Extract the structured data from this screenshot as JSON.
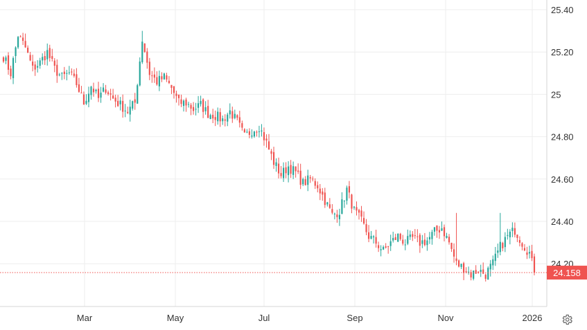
{
  "chart_data": {
    "type": "candlestick",
    "title": "",
    "xlabel": "",
    "ylabel": "",
    "ylim": [
      24.07,
      25.42
    ],
    "y_ticks": [
      "25.40",
      "25.20",
      "25",
      "24.80",
      "24.60",
      "24.40",
      "24.20"
    ],
    "y_tick_values": [
      25.4,
      25.2,
      25.0,
      24.8,
      24.6,
      24.4,
      24.2
    ],
    "x_ticks": [
      "Mar",
      "May",
      "Jul",
      "Sep",
      "Nov",
      "2026"
    ],
    "last_price": "24.158",
    "last_price_value": 24.158,
    "grid": true,
    "colors": {
      "up": "#26a69a",
      "down": "#ef5350",
      "grid": "#eeeeee",
      "axis": "#d6d6d6",
      "text": "#333333"
    },
    "anchors": [
      [
        0,
        25.18
      ],
      [
        3,
        25.1
      ],
      [
        6,
        25.28
      ],
      [
        9,
        25.22
      ],
      [
        12,
        25.12
      ],
      [
        15,
        25.15
      ],
      [
        18,
        25.2
      ],
      [
        21,
        25.12
      ],
      [
        24,
        25.08
      ],
      [
        27,
        25.1
      ],
      [
        30,
        25.05
      ],
      [
        33,
        24.96
      ],
      [
        36,
        25.04
      ],
      [
        39,
        24.98
      ],
      [
        42,
        25.03
      ],
      [
        45,
        24.98
      ],
      [
        48,
        24.95
      ],
      [
        51,
        24.92
      ],
      [
        54,
        24.96
      ],
      [
        57,
        25.26
      ],
      [
        60,
        25.1
      ],
      [
        63,
        25.06
      ],
      [
        66,
        25.08
      ],
      [
        69,
        25.03
      ],
      [
        72,
        24.96
      ],
      [
        75,
        24.96
      ],
      [
        78,
        24.93
      ],
      [
        81,
        24.95
      ],
      [
        84,
        24.91
      ],
      [
        87,
        24.9
      ],
      [
        90,
        24.88
      ],
      [
        93,
        24.92
      ],
      [
        96,
        24.87
      ],
      [
        99,
        24.8
      ],
      [
        102,
        24.83
      ],
      [
        105,
        24.85
      ],
      [
        108,
        24.77
      ],
      [
        111,
        24.68
      ],
      [
        114,
        24.62
      ],
      [
        117,
        24.66
      ],
      [
        120,
        24.63
      ],
      [
        123,
        24.58
      ],
      [
        126,
        24.6
      ],
      [
        129,
        24.57
      ],
      [
        132,
        24.5
      ],
      [
        135,
        24.43
      ],
      [
        138,
        24.45
      ],
      [
        141,
        24.55
      ],
      [
        144,
        24.45
      ],
      [
        147,
        24.4
      ],
      [
        150,
        24.33
      ],
      [
        153,
        24.3
      ],
      [
        156,
        24.26
      ],
      [
        159,
        24.3
      ],
      [
        162,
        24.33
      ],
      [
        165,
        24.3
      ],
      [
        168,
        24.32
      ],
      [
        171,
        24.3
      ],
      [
        174,
        24.31
      ],
      [
        177,
        24.35
      ],
      [
        180,
        24.37
      ],
      [
        183,
        24.3
      ],
      [
        186,
        24.2
      ],
      [
        189,
        24.18
      ],
      [
        192,
        24.15
      ],
      [
        195,
        24.17
      ],
      [
        198,
        24.15
      ],
      [
        201,
        24.2
      ],
      [
        204,
        24.28
      ],
      [
        207,
        24.33
      ],
      [
        210,
        24.36
      ],
      [
        213,
        24.3
      ],
      [
        216,
        24.25
      ],
      [
        218,
        24.158
      ]
    ],
    "spikes": [
      [
        186,
        24.44
      ],
      [
        204,
        24.44
      ],
      [
        57,
        25.3
      ]
    ]
  }
}
